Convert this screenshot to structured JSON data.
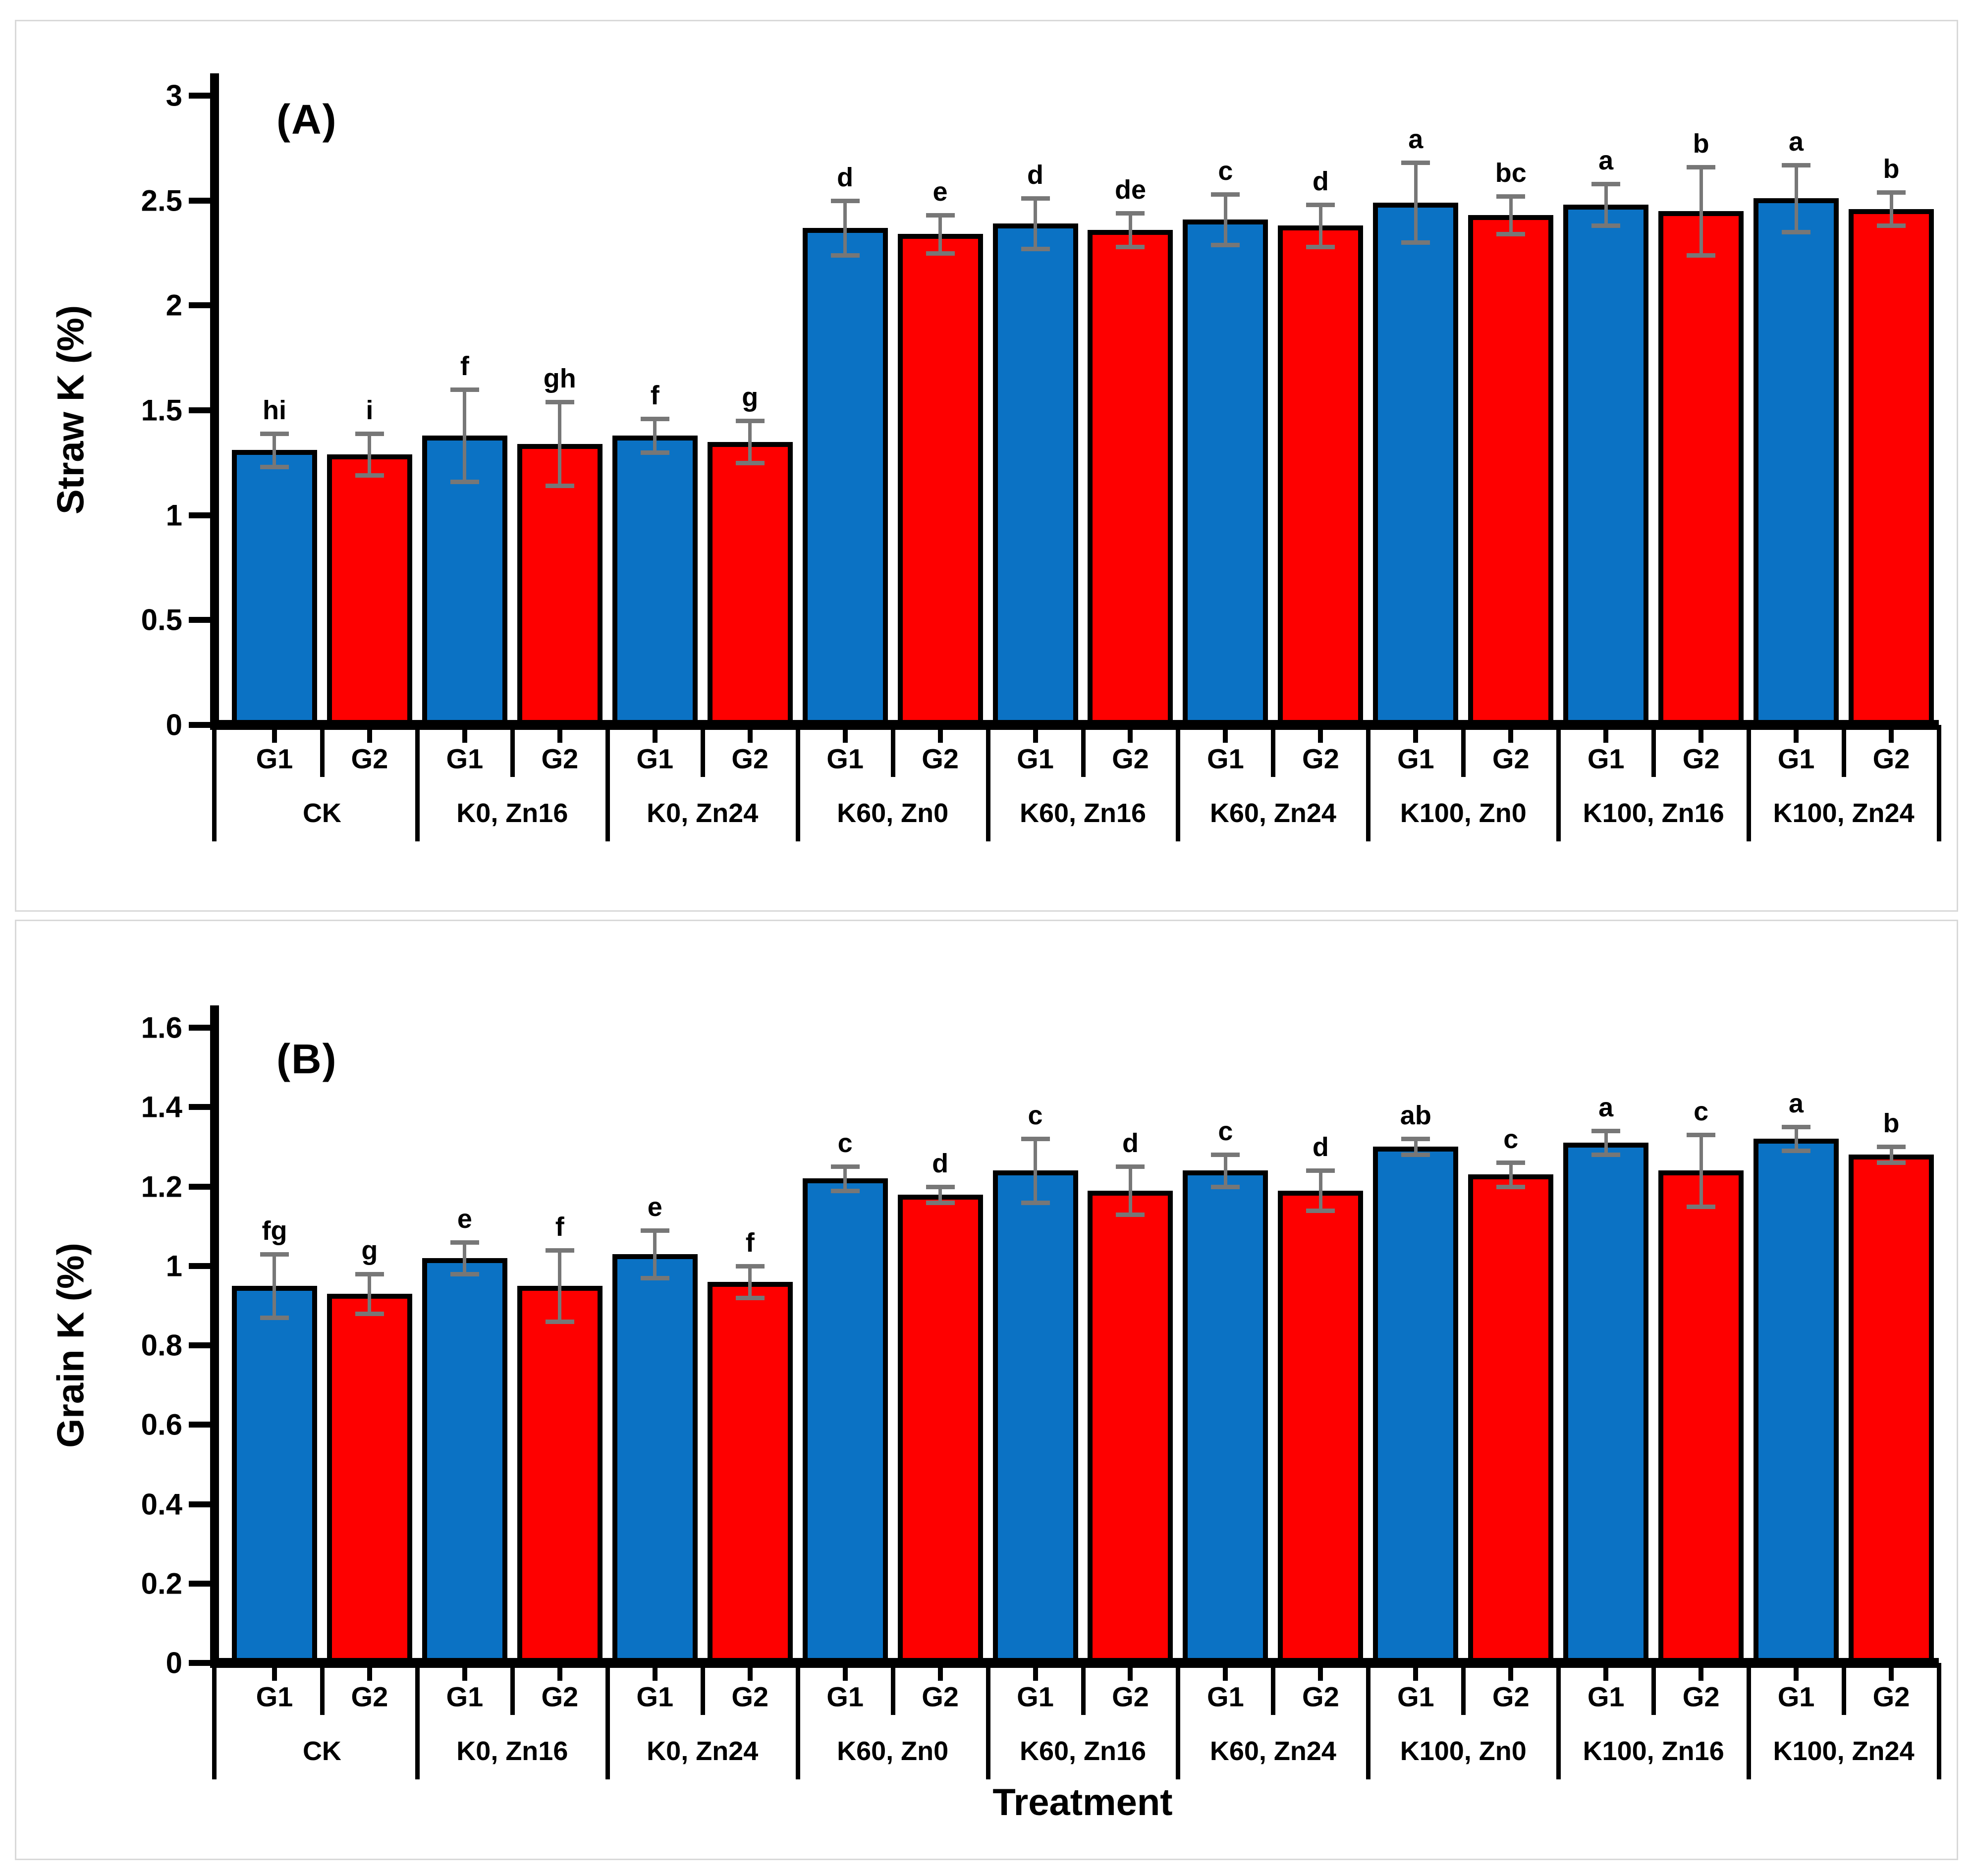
{
  "chart_data": [
    {
      "type": "bar",
      "panel_label": "(A)",
      "ylabel": "Straw K (%)",
      "xlabel": "",
      "ylim": [
        0,
        3
      ],
      "yticks": [
        0,
        0.5,
        1,
        1.5,
        2,
        2.5,
        3
      ],
      "ytick_labels": [
        "0",
        "0.5",
        "1",
        "1.5",
        "2",
        "2.5",
        "3"
      ],
      "grid": false,
      "legend_position": "none",
      "categories": [
        "CK",
        "K0, Zn16",
        "K0, Zn24",
        "K60, Zn0",
        "K60, Zn16",
        "K60, Zn24",
        "K100, Zn0",
        "K100, Zn16",
        "K100, Zn24"
      ],
      "subcategories": [
        "G1",
        "G2"
      ],
      "error_bar_color": "#777777",
      "series": [
        {
          "name": "G1",
          "color": "#0b72c4",
          "values": [
            1.31,
            1.38,
            1.38,
            2.37,
            2.39,
            2.41,
            2.49,
            2.48,
            2.51
          ],
          "errors": [
            0.08,
            0.22,
            0.08,
            0.13,
            0.12,
            0.12,
            0.19,
            0.1,
            0.16
          ],
          "letters": [
            "hi",
            "f",
            "f",
            "d",
            "d",
            "c",
            "a",
            "a",
            "a"
          ]
        },
        {
          "name": "G2",
          "color": "#fe0000",
          "values": [
            1.29,
            1.34,
            1.35,
            2.34,
            2.36,
            2.38,
            2.43,
            2.45,
            2.46
          ],
          "errors": [
            0.1,
            0.2,
            0.1,
            0.09,
            0.08,
            0.1,
            0.09,
            0.21,
            0.08
          ],
          "letters": [
            "i",
            "gh",
            "g",
            "e",
            "de",
            "d",
            "bc",
            "b",
            "b"
          ]
        }
      ]
    },
    {
      "type": "bar",
      "panel_label": "(B)",
      "ylabel": "Grain K (%)",
      "xlabel": "Treatment",
      "ylim": [
        0,
        1.6
      ],
      "yticks": [
        0,
        0.2,
        0.4,
        0.6,
        0.8,
        1,
        1.2,
        1.4,
        1.6
      ],
      "ytick_labels": [
        "0",
        "0.2",
        "0.4",
        "0.6",
        "0.8",
        "1",
        "1.2",
        "1.4",
        "1.6"
      ],
      "grid": false,
      "legend_position": "none",
      "categories": [
        "CK",
        "K0, Zn16",
        "K0, Zn24",
        "K60, Zn0",
        "K60, Zn16",
        "K60, Zn24",
        "K100, Zn0",
        "K100, Zn16",
        "K100, Zn24"
      ],
      "subcategories": [
        "G1",
        "G2"
      ],
      "error_bar_color": "#777777",
      "series": [
        {
          "name": "G1",
          "color": "#0b72c4",
          "values": [
            0.95,
            1.02,
            1.03,
            1.22,
            1.24,
            1.24,
            1.3,
            1.31,
            1.32
          ],
          "errors": [
            0.08,
            0.04,
            0.06,
            0.03,
            0.08,
            0.04,
            0.02,
            0.03,
            0.03
          ],
          "letters": [
            "fg",
            "e",
            "e",
            "c",
            "c",
            "c",
            "ab",
            "a",
            "a"
          ]
        },
        {
          "name": "G2",
          "color": "#fe0000",
          "values": [
            0.93,
            0.95,
            0.96,
            1.18,
            1.19,
            1.19,
            1.23,
            1.24,
            1.28
          ],
          "errors": [
            0.05,
            0.09,
            0.04,
            0.02,
            0.06,
            0.05,
            0.03,
            0.09,
            0.02
          ],
          "letters": [
            "g",
            "f",
            "f",
            "d",
            "d",
            "d",
            "c",
            "c",
            "b"
          ]
        }
      ]
    }
  ]
}
